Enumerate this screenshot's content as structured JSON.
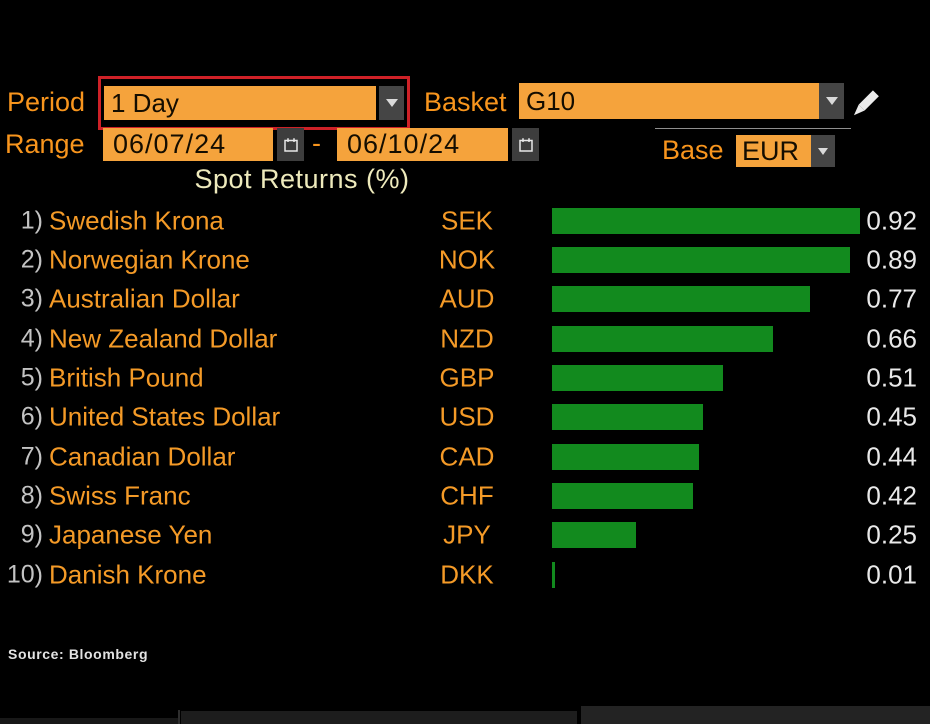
{
  "controls": {
    "period": {
      "label": "Period",
      "value": "1 Day",
      "highlighted": true
    },
    "basket": {
      "label": "Basket",
      "value": "G10"
    },
    "range": {
      "label": "Range",
      "start_date": "06/07/24",
      "separator": "-",
      "end_date": "06/10/24"
    },
    "base": {
      "label": "Base",
      "value": "EUR"
    }
  },
  "chart_data": {
    "type": "bar",
    "orientation": "horizontal",
    "title": "Spot Returns (%)",
    "xlim": [
      0,
      0.92
    ],
    "grid": false,
    "legend": false,
    "categories": [
      "Swedish Krona",
      "Norwegian Krone",
      "Australian Dollar",
      "New Zealand Dollar",
      "British Pound",
      "United States Dollar",
      "Canadian Dollar",
      "Swiss Franc",
      "Japanese Yen",
      "Danish Krone"
    ],
    "codes": [
      "SEK",
      "NOK",
      "AUD",
      "NZD",
      "GBP",
      "USD",
      "CAD",
      "CHF",
      "JPY",
      "DKK"
    ],
    "ranks": [
      "1)",
      "2)",
      "3)",
      "4)",
      "5)",
      "6)",
      "7)",
      "8)",
      "9)",
      "10)"
    ],
    "values": [
      0.92,
      0.89,
      0.77,
      0.66,
      0.51,
      0.45,
      0.44,
      0.42,
      0.25,
      0.01
    ],
    "value_labels": [
      "0.92",
      "0.89",
      "0.77",
      "0.66",
      "0.51",
      "0.45",
      "0.44",
      "0.42",
      "0.25",
      "0.01"
    ],
    "bar_color": "#128a1e"
  },
  "footer": {
    "source": "Source: Bloomberg"
  },
  "colors": {
    "accent_orange": "#f8951d",
    "field_orange": "#f5a33c",
    "highlight_red": "#ce2127",
    "bar_green": "#128a1e",
    "title_yellow": "#eeeabc",
    "value_white": "#e9e9e9",
    "rank_gray": "#c3c3c3",
    "background": "#000000"
  }
}
